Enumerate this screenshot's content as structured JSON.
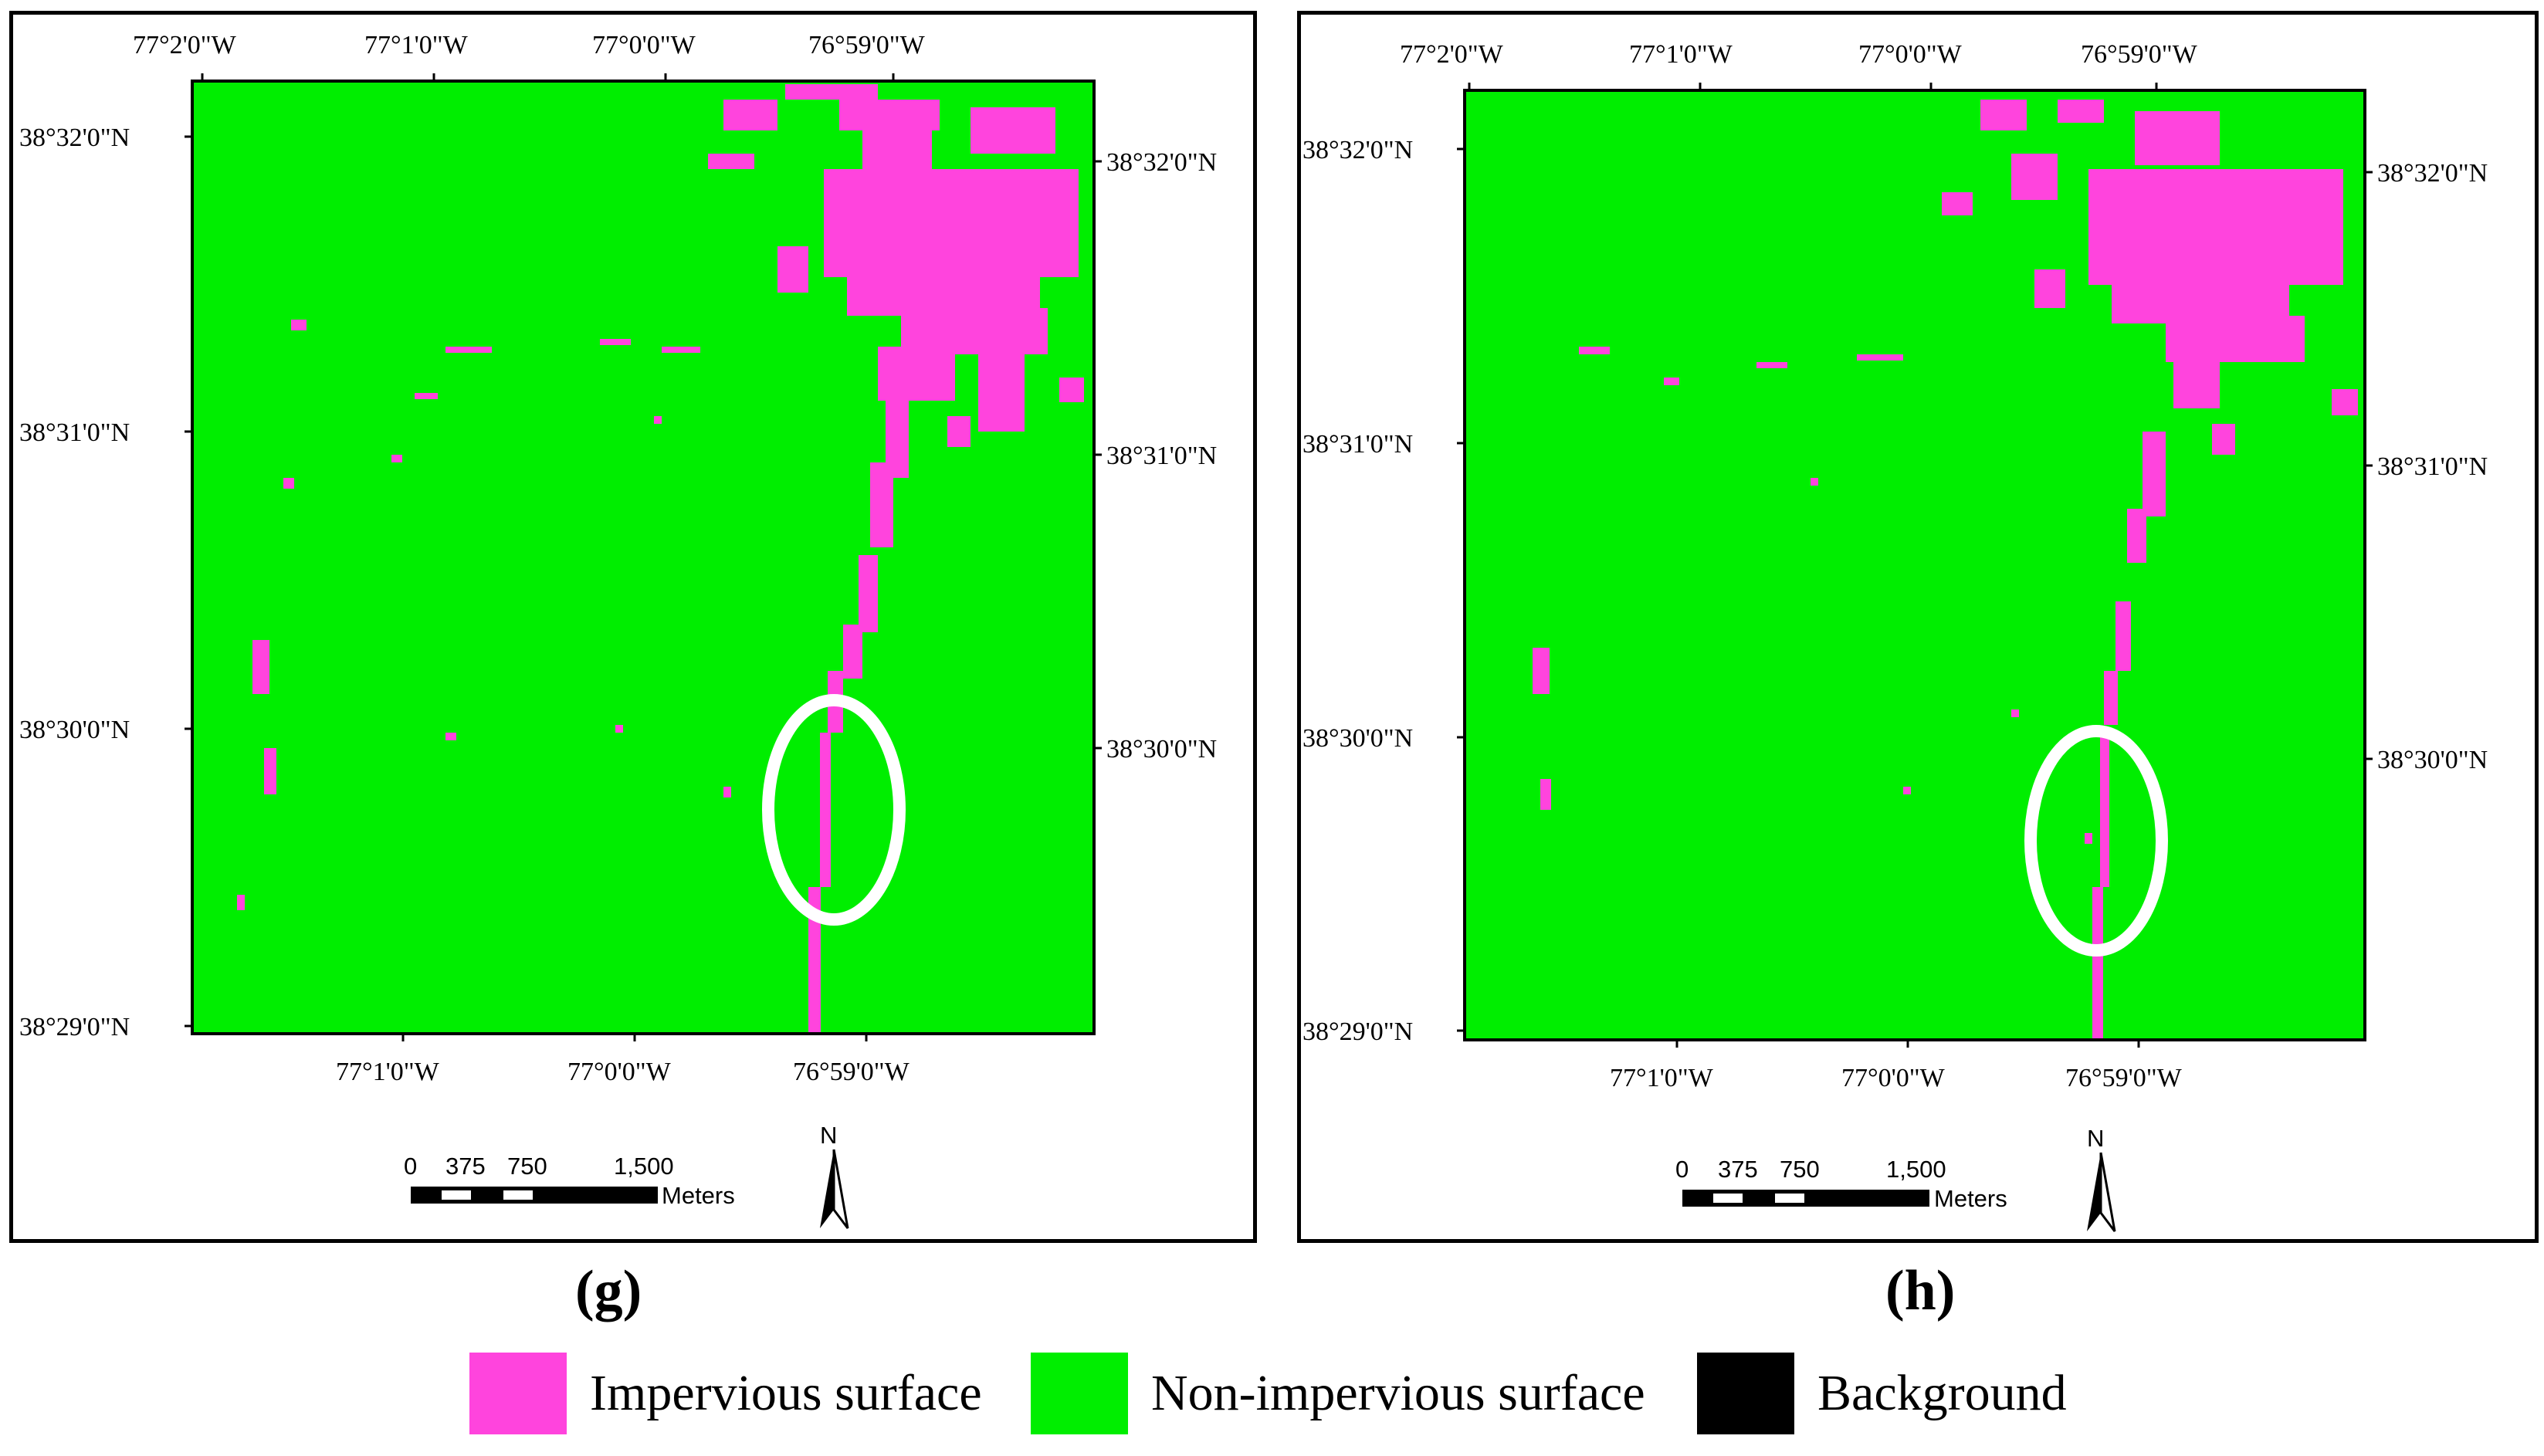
{
  "panels": [
    {
      "label": "(g)",
      "top_lon_labels": [
        "77°2'0\"W",
        "77°1'0\"W",
        "77°0'0\"W",
        "76°59'0\"W"
      ],
      "bottom_lon_labels": [
        "77°1'0\"W",
        "77°0'0\"W",
        "76°59'0\"W"
      ],
      "left_lat_labels": [
        "38°32'0\"N",
        "38°31'0\"N",
        "38°30'0\"N",
        "38°29'0\"N"
      ],
      "right_lat_labels": [
        "38°32'0\"N",
        "38°31'0\"N",
        "38°30'0\"N"
      ]
    },
    {
      "label": "(h)",
      "top_lon_labels": [
        "77°2'0\"W",
        "77°1'0\"W",
        "77°0'0\"W",
        "76°59'0\"W"
      ],
      "bottom_lon_labels": [
        "77°1'0\"W",
        "77°0'0\"W",
        "76°59'0\"W"
      ],
      "left_lat_labels": [
        "38°32'0\"N",
        "38°31'0\"N",
        "38°30'0\"N",
        "38°29'0\"N"
      ],
      "right_lat_labels": [
        "38°32'0\"N",
        "38°31'0\"N",
        "38°30'0\"N"
      ]
    }
  ],
  "scalebar": {
    "ticks": [
      "0",
      "375",
      "750",
      "1,500"
    ],
    "unit": "Meters"
  },
  "north_arrow": {
    "label": "N",
    "icon": "north-arrow-icon"
  },
  "legend": [
    {
      "label": "Impervious surface",
      "color": "#ff44dd"
    },
    {
      "label": "Non-impervious surface",
      "color": "#00ee00"
    },
    {
      "label": "Background",
      "color": "#000000"
    }
  ],
  "colors": {
    "impervious": "#ff44dd",
    "non_impervious": "#00ee00",
    "highlight": "#ffffff"
  }
}
